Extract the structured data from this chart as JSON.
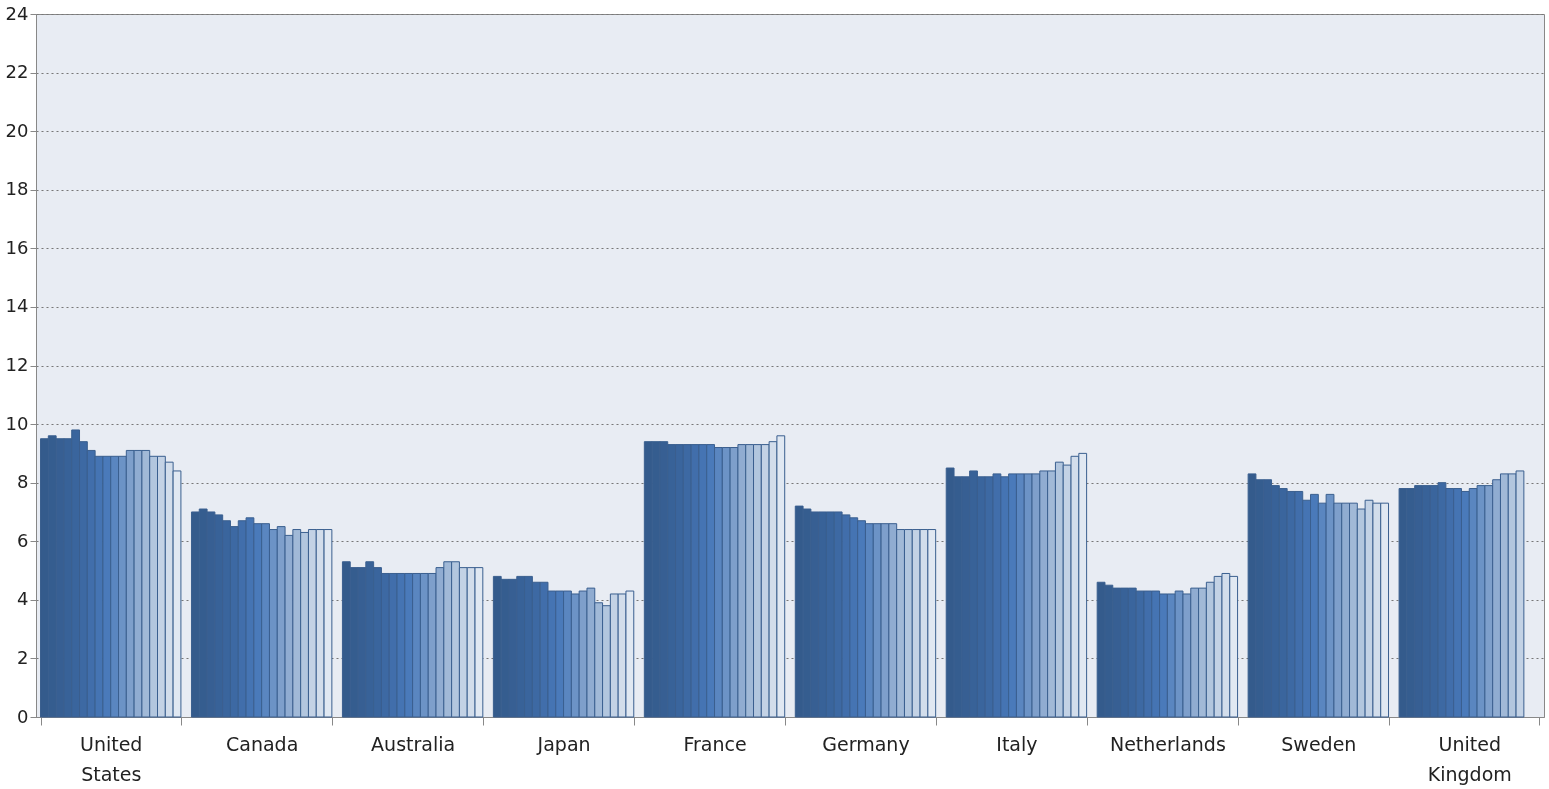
{
  "chart_data": {
    "type": "bar",
    "categories": [
      "United States",
      "Canada",
      "Australia",
      "Japan",
      "France",
      "Germany",
      "Italy",
      "Netherlands",
      "Sweden",
      "United Kingdom"
    ],
    "series": [
      {
        "color": "#345b8c",
        "values": [
          9.5,
          7.0,
          5.3,
          4.8,
          9.4,
          7.2,
          8.5,
          4.6,
          8.3,
          7.8
        ]
      },
      {
        "color": "#355d8f",
        "values": [
          9.6,
          7.1,
          5.1,
          4.7,
          9.4,
          7.1,
          8.2,
          4.5,
          8.1,
          7.8
        ]
      },
      {
        "color": "#375f93",
        "values": [
          9.5,
          7.0,
          5.1,
          4.7,
          9.4,
          7.0,
          8.2,
          4.4,
          8.1,
          7.9
        ]
      },
      {
        "color": "#386298",
        "values": [
          9.5,
          6.9,
          5.3,
          4.8,
          9.3,
          7.0,
          8.4,
          4.4,
          7.9,
          7.9
        ]
      },
      {
        "color": "#3a659d",
        "values": [
          9.8,
          6.7,
          5.1,
          4.8,
          9.3,
          7.0,
          8.2,
          4.4,
          7.8,
          7.9
        ]
      },
      {
        "color": "#3d69a3",
        "values": [
          9.4,
          6.5,
          4.9,
          4.6,
          9.3,
          7.0,
          8.2,
          4.3,
          7.7,
          8.0
        ]
      },
      {
        "color": "#416eab",
        "values": [
          9.1,
          6.7,
          4.9,
          4.6,
          9.3,
          6.9,
          8.3,
          4.3,
          7.7,
          7.8
        ]
      },
      {
        "color": "#4574b3",
        "values": [
          8.9,
          6.8,
          4.9,
          4.3,
          9.3,
          6.8,
          8.2,
          4.3,
          7.4,
          7.8
        ]
      },
      {
        "color": "#4a7aba",
        "values": [
          8.9,
          6.6,
          4.9,
          4.3,
          9.3,
          6.7,
          8.3,
          4.2,
          7.6,
          7.7
        ]
      },
      {
        "color": "#5a86c0",
        "values": [
          8.9,
          6.6,
          4.9,
          4.3,
          9.2,
          6.6,
          8.3,
          4.2,
          7.3,
          7.8
        ]
      },
      {
        "color": "#6c93c6",
        "values": [
          8.9,
          6.4,
          4.9,
          4.2,
          9.2,
          6.6,
          8.3,
          4.3,
          7.6,
          7.9
        ]
      },
      {
        "color": "#7e9fcb",
        "values": [
          9.1,
          6.5,
          4.9,
          4.3,
          9.2,
          6.6,
          8.3,
          4.2,
          7.3,
          7.9
        ]
      },
      {
        "color": "#90acd1",
        "values": [
          9.1,
          6.2,
          5.1,
          4.4,
          9.3,
          6.6,
          8.4,
          4.4,
          7.3,
          8.1
        ]
      },
      {
        "color": "#a1b9d7",
        "values": [
          9.1,
          6.4,
          5.3,
          3.9,
          9.3,
          6.4,
          8.4,
          4.4,
          7.3,
          8.3
        ]
      },
      {
        "color": "#b2c6de",
        "values": [
          8.9,
          6.3,
          5.3,
          3.8,
          9.3,
          6.4,
          8.7,
          4.6,
          7.1,
          8.3
        ]
      },
      {
        "color": "#c3d2e5",
        "values": [
          8.9,
          6.4,
          5.1,
          4.2,
          9.3,
          6.4,
          8.6,
          4.8,
          7.4,
          8.4
        ]
      },
      {
        "color": "#d2ddeb",
        "values": [
          8.7,
          6.4,
          5.1,
          4.2,
          9.4,
          6.4,
          8.9,
          4.9,
          7.3,
          null
        ]
      },
      {
        "color": "#e0e8f2",
        "values": [
          8.4,
          6.4,
          5.1,
          4.3,
          9.6,
          6.4,
          9.0,
          4.8,
          7.3,
          null
        ]
      }
    ],
    "ylim": [
      0,
      24
    ],
    "yticks": [
      0,
      2,
      4,
      6,
      8,
      10,
      12,
      14,
      16,
      18,
      20,
      22,
      24
    ],
    "grid": "y",
    "legend": false
  }
}
